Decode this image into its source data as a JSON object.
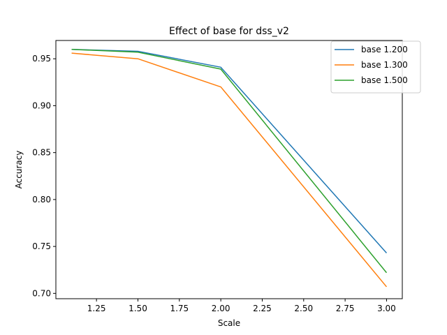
{
  "chart_data": {
    "type": "line",
    "title": "Effect of base for dss_v2",
    "xlabel": "Scale",
    "ylabel": "Accuracy",
    "xlim": [
      1.005,
      3.095
    ],
    "ylim": [
      0.6943,
      0.9695
    ],
    "xticks": [
      1.25,
      1.5,
      1.75,
      2.0,
      2.25,
      2.5,
      2.75,
      3.0
    ],
    "xtick_labels": [
      "1.25",
      "1.50",
      "1.75",
      "2.00",
      "2.25",
      "2.50",
      "2.75",
      "3.00"
    ],
    "yticks": [
      0.7,
      0.75,
      0.8,
      0.85,
      0.9,
      0.95
    ],
    "ytick_labels": [
      "0.70",
      "0.75",
      "0.80",
      "0.85",
      "0.90",
      "0.95"
    ],
    "x": [
      1.1,
      1.5,
      2.0,
      3.0
    ],
    "series": [
      {
        "name": "base 1.200",
        "color": "#1f77b4",
        "values": [
          0.96,
          0.958,
          0.941,
          0.743
        ]
      },
      {
        "name": "base 1.300",
        "color": "#ff7f0e",
        "values": [
          0.956,
          0.95,
          0.92,
          0.707
        ]
      },
      {
        "name": "base 1.500",
        "color": "#2ca02c",
        "values": [
          0.96,
          0.957,
          0.939,
          0.722
        ]
      }
    ],
    "legend_position": "top-right",
    "grid": false
  }
}
